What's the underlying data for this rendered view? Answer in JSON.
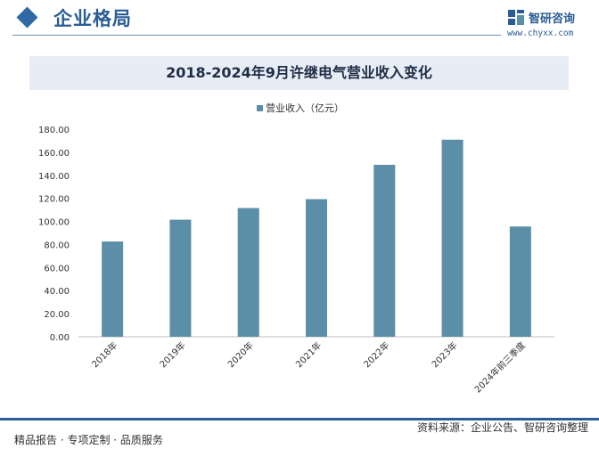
{
  "header": {
    "section_title": "企业格局",
    "logo_name": "智研咨询",
    "logo_url": "www.chyxx.com"
  },
  "chart_data": {
    "type": "bar",
    "title": "2018-2024年9月许继电气营业收入变化",
    "categories": [
      "2018年",
      "2019年",
      "2020年",
      "2021年",
      "2022年",
      "2023年",
      "2024年前三季度"
    ],
    "series": [
      {
        "name": "营业收入（亿元）",
        "values": [
          82.6,
          101.5,
          111.6,
          119.3,
          149.1,
          170.9,
          95.6
        ]
      }
    ],
    "ylim": [
      0,
      180
    ],
    "yticks": [
      "0.00",
      "20.00",
      "40.00",
      "60.00",
      "80.00",
      "100.00",
      "120.00",
      "140.00",
      "160.00",
      "180.00"
    ],
    "legend_position": "top",
    "bar_color": "#5b8fa8",
    "grid": false
  },
  "footer": {
    "left_text": "精品报告 · 专项定制 · 品质服务",
    "right_text": "资料来源：企业公告、智研咨询整理"
  }
}
